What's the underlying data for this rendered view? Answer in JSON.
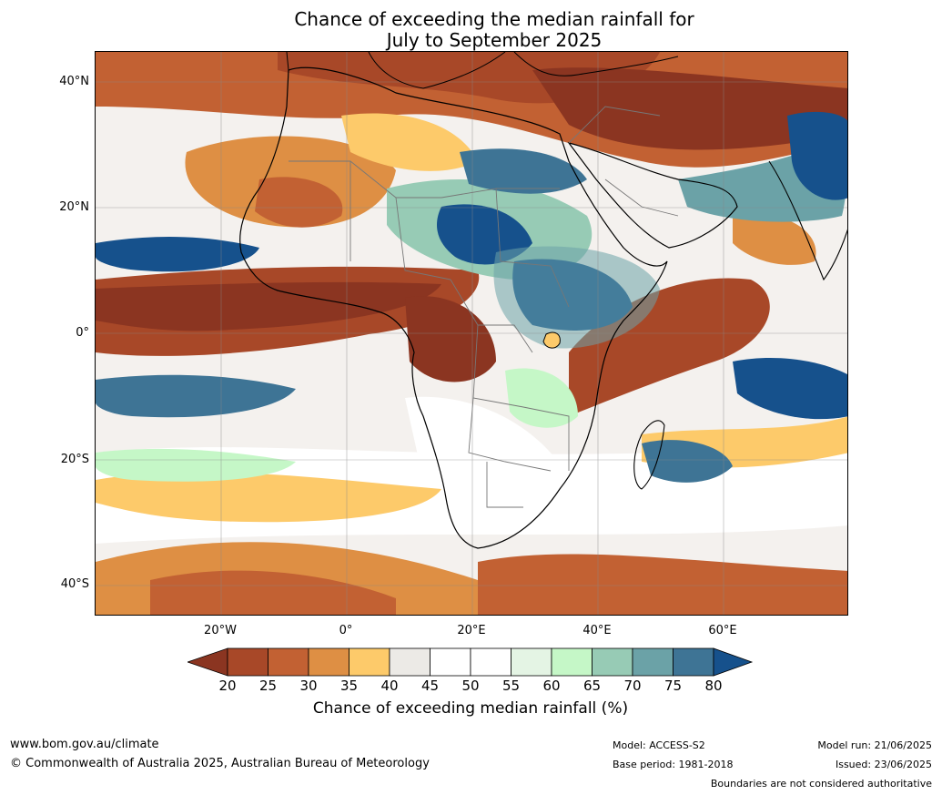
{
  "title_line1": "Chance of exceeding the median rainfall for",
  "title_line2": "July to September 2025",
  "lat_labels": [
    "40°N",
    "20°N",
    "0°",
    "20°S",
    "40°S"
  ],
  "lon_labels": [
    "20°W",
    "0°",
    "20°E",
    "40°E",
    "60°E"
  ],
  "colorbar": {
    "ticks": [
      "20",
      "25",
      "30",
      "35",
      "40",
      "45",
      "50",
      "55",
      "60",
      "65",
      "70",
      "75",
      "80"
    ],
    "colors": [
      "#8b3521",
      "#a84828",
      "#c26133",
      "#de8f44",
      "#fdca6a",
      "#eceae6",
      "#ffffff",
      "#ffffff",
      "#e4f4e4",
      "#c5f7c7",
      "#97cbb5",
      "#6ba2a7",
      "#3e7495",
      "#16518c"
    ],
    "title": "Chance of exceeding median rainfall (%)"
  },
  "footer": {
    "website": "www.bom.gov.au/climate",
    "copyright": "© Commonwealth of Australia 2025, Australian Bureau of Meteorology",
    "model": "Model: ACCESS-S2",
    "base_period": "Base period: 1981-2018",
    "model_run": "Model run: 21/06/2025",
    "issued": "Issued: 23/06/2025",
    "disclaimer": "Boundaries are not considered authoritative"
  }
}
